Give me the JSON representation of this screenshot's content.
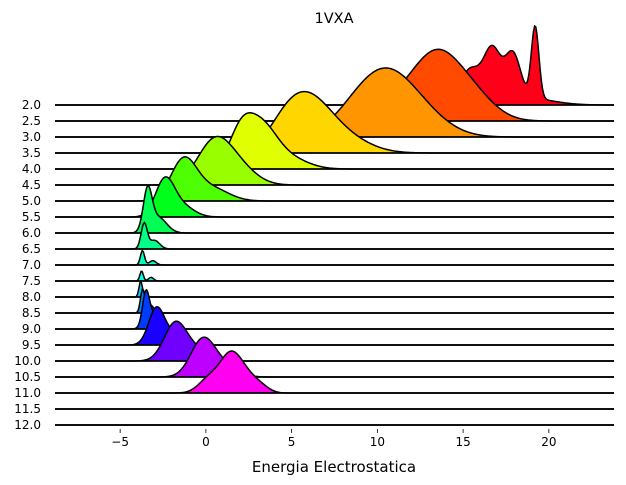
{
  "chart_data": {
    "type": "ridgeline",
    "title": "1VXA",
    "xlabel": "Energia Electrostatica",
    "ylabel": "",
    "xlim": [
      -8.8,
      23.8
    ],
    "xticks": [
      -5,
      0,
      5,
      10,
      15,
      20
    ],
    "grid": false,
    "series": [
      {
        "label": "2.0",
        "color": "#ff0019",
        "peaks": [
          [
            15.4,
            0.6,
            0.48
          ],
          [
            16.7,
            0.5,
            0.72
          ],
          [
            17.9,
            0.45,
            0.62
          ],
          [
            19.2,
            0.22,
            1.0
          ],
          [
            18.6,
            1.5,
            0.1
          ]
        ]
      },
      {
        "label": "2.5",
        "color": "#ff4a00",
        "peaks": [
          [
            13.5,
            1.3,
            0.78
          ],
          [
            11.5,
            1.4,
            0.3
          ],
          [
            15.5,
            1.3,
            0.35
          ]
        ]
      },
      {
        "label": "3.0",
        "color": "#ff9500",
        "peaks": [
          [
            10.4,
            1.6,
            0.76
          ],
          [
            8.5,
            1.4,
            0.2
          ],
          [
            12.5,
            1.6,
            0.28
          ]
        ]
      },
      {
        "label": "3.5",
        "color": "#ffd600",
        "peaks": [
          [
            5.8,
            1.4,
            0.72
          ],
          [
            8.0,
            1.5,
            0.2
          ],
          [
            4.5,
            1.0,
            0.15
          ]
        ]
      },
      {
        "label": "4.0",
        "color": "#e0ff00",
        "peaks": [
          [
            2.0,
            0.7,
            0.45
          ],
          [
            3.2,
            0.9,
            0.56
          ],
          [
            4.8,
            1.1,
            0.15
          ]
        ]
      },
      {
        "label": "4.5",
        "color": "#99ff00",
        "peaks": [
          [
            0.5,
            1.0,
            0.6
          ],
          [
            2.0,
            1.0,
            0.2
          ]
        ]
      },
      {
        "label": "5.0",
        "color": "#4dff00",
        "peaks": [
          [
            -1.3,
            0.75,
            0.56
          ],
          [
            0.3,
            1.0,
            0.18
          ]
        ]
      },
      {
        "label": "5.5",
        "color": "#00ff1a",
        "peaks": [
          [
            -2.4,
            0.55,
            0.5
          ],
          [
            -1.4,
            0.7,
            0.15
          ]
        ]
      },
      {
        "label": "6.0",
        "color": "#00ff54",
        "peaks": [
          [
            -3.4,
            0.25,
            0.55
          ],
          [
            -2.8,
            0.5,
            0.22
          ]
        ]
      },
      {
        "label": "6.5",
        "color": "#00ff88",
        "peaks": [
          [
            -3.6,
            0.18,
            0.35
          ],
          [
            -3.0,
            0.3,
            0.12
          ]
        ]
      },
      {
        "label": "7.0",
        "color": "#00ffb8",
        "peaks": [
          [
            -3.7,
            0.12,
            0.2
          ],
          [
            -3.1,
            0.2,
            0.06
          ]
        ]
      },
      {
        "label": "7.5",
        "color": "#00ffe2",
        "peaks": [
          [
            -3.75,
            0.1,
            0.14
          ],
          [
            -3.2,
            0.15,
            0.05
          ]
        ]
      },
      {
        "label": "8.0",
        "color": "#00d0ff",
        "peaks": [
          [
            -3.8,
            0.1,
            0.22
          ]
        ]
      },
      {
        "label": "8.5",
        "color": "#0084ff",
        "peaks": [
          [
            -3.7,
            0.12,
            0.3
          ],
          [
            -3.3,
            0.25,
            0.12
          ]
        ]
      },
      {
        "label": "9.0",
        "color": "#003cff",
        "peaks": [
          [
            -3.5,
            0.2,
            0.45
          ],
          [
            -3.0,
            0.4,
            0.2
          ]
        ]
      },
      {
        "label": "9.5",
        "color": "#1a00ff",
        "peaks": [
          [
            -2.9,
            0.45,
            0.48
          ],
          [
            -2.0,
            0.6,
            0.15
          ]
        ]
      },
      {
        "label": "10.0",
        "color": "#7000ff",
        "peaks": [
          [
            -1.8,
            0.65,
            0.5
          ],
          [
            -0.6,
            0.8,
            0.15
          ]
        ]
      },
      {
        "label": "10.5",
        "color": "#bd00ff",
        "peaks": [
          [
            -0.2,
            0.7,
            0.5
          ],
          [
            1.0,
            0.8,
            0.15
          ]
        ]
      },
      {
        "label": "11.0",
        "color": "#ff00f0",
        "peaks": [
          [
            1.4,
            0.6,
            0.48
          ],
          [
            0.2,
            0.6,
            0.2
          ],
          [
            2.3,
            0.6,
            0.22
          ],
          [
            3.2,
            0.5,
            0.08
          ]
        ]
      },
      {
        "label": "11.5",
        "color": "#ffffff",
        "peaks": []
      },
      {
        "label": "12.0",
        "color": "#ffffff",
        "peaks": []
      }
    ]
  }
}
